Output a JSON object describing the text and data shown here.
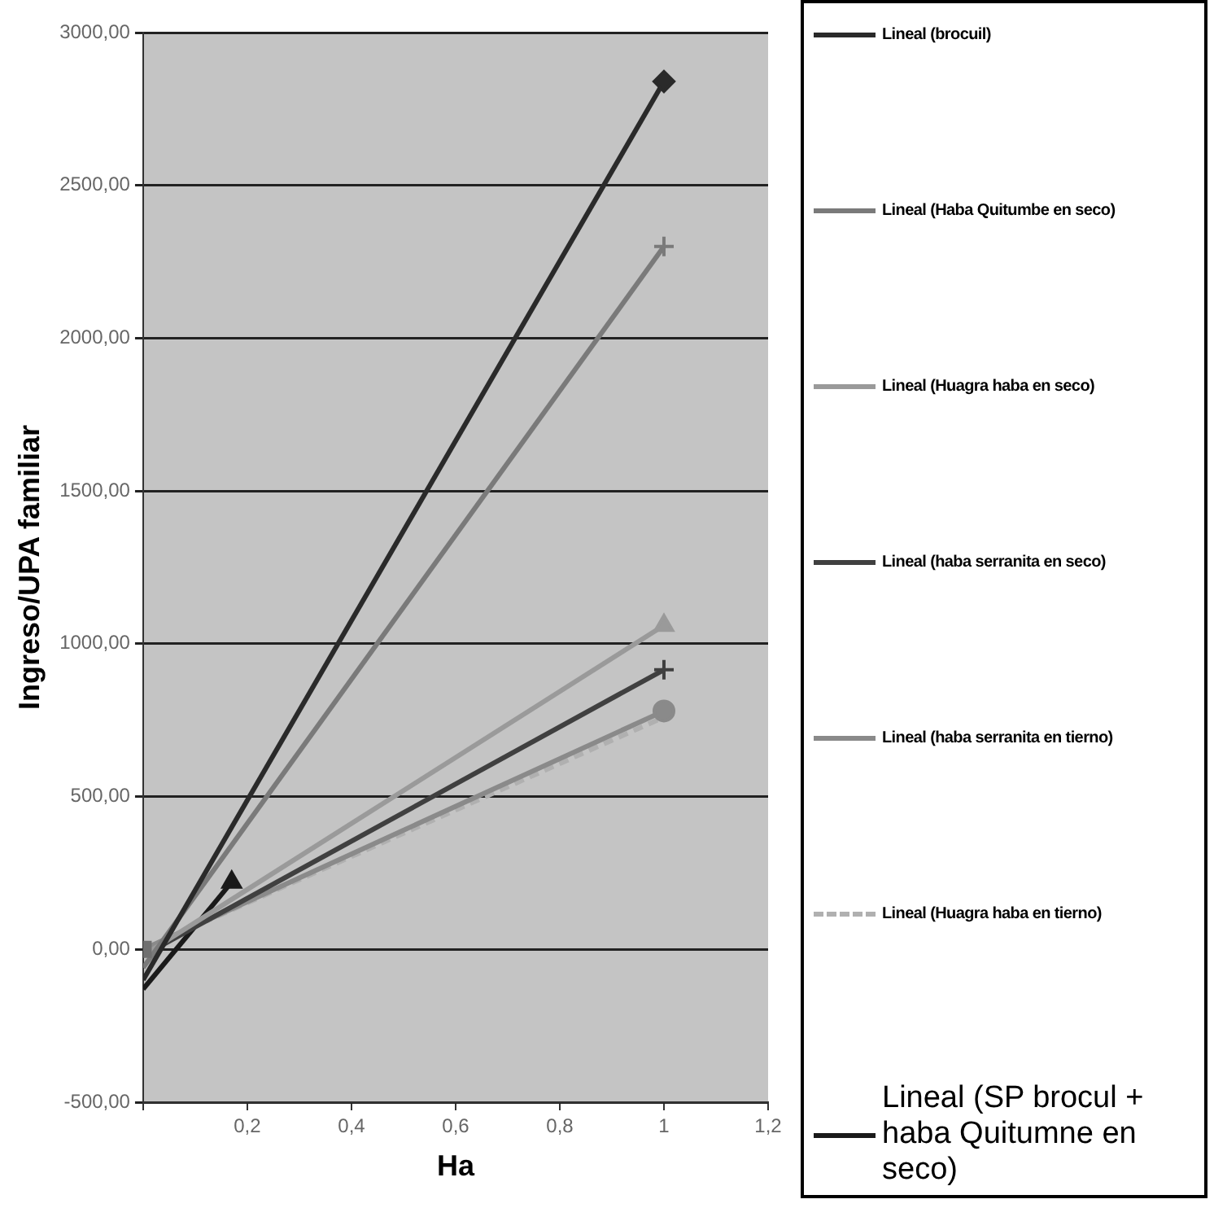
{
  "chart_data": {
    "type": "line",
    "xlabel": "Ha",
    "ylabel": "Ingreso/UPA familiar",
    "xlim": [
      0,
      1.2
    ],
    "xticks": [
      {
        "value": 0,
        "label": null
      },
      {
        "value": 0.2,
        "label": "0,2"
      },
      {
        "value": 0.4,
        "label": "0,4"
      },
      {
        "value": 0.6,
        "label": "0,6"
      },
      {
        "value": 0.8,
        "label": "0,8"
      },
      {
        "value": 1,
        "label": "1"
      },
      {
        "value": 1.2,
        "label": "1,2"
      }
    ],
    "ylim": [
      -500,
      3000
    ],
    "yticks": [
      {
        "value": -500,
        "label": "-500,00"
      },
      {
        "value": 0,
        "label": "0,00"
      },
      {
        "value": 500,
        "label": "500,00"
      },
      {
        "value": 1000,
        "label": "1000,00"
      },
      {
        "value": 1500,
        "label": "1500,00"
      },
      {
        "value": 2000,
        "label": "2000,00"
      },
      {
        "value": 2500,
        "label": "2500,00"
      },
      {
        "value": 3000,
        "label": "3000,00"
      }
    ],
    "grid": "y",
    "legend": "right",
    "line_style": "solid",
    "series": [
      {
        "type": "scatter",
        "color": "#2a2a2a",
        "x": [
          1
        ],
        "values": [
          2840
        ],
        "marker": "diamond"
      },
      {
        "type": "scatter",
        "color": "#7a7a7a",
        "x": [
          1
        ],
        "values": [
          2300
        ],
        "marker": "cross"
      },
      {
        "type": "scatter",
        "color": "#9a9a9a",
        "x": [
          1
        ],
        "values": [
          1060
        ],
        "marker": "triangle"
      },
      {
        "type": "scatter",
        "color": "#404040",
        "x": [
          1
        ],
        "values": [
          915
        ],
        "marker": "cross"
      },
      {
        "type": "scatter",
        "color": "#8a8a8a",
        "x": [
          1
        ],
        "values": [
          780
        ],
        "marker": "circle"
      },
      {
        "type": "scatter",
        "color": "#1a1a1a",
        "x": [
          0.17
        ],
        "values": [
          220
        ],
        "marker": "triangle"
      },
      {
        "type": "scatter",
        "color": "#707070",
        "x": [
          0
        ],
        "values": [
          0
        ],
        "marker": "square"
      },
      {
        "name": "Lineal (brocuil)",
        "color": "#2a2a2a",
        "x": [
          0,
          1
        ],
        "values": [
          -100,
          2840
        ],
        "marker": "none"
      },
      {
        "name": "Lineal (Haba Quitumbe en seco)",
        "color": "#7a7a7a",
        "x": [
          0,
          1
        ],
        "values": [
          -60,
          2300
        ],
        "marker": "none"
      },
      {
        "name": "Lineal (Huagra haba en seco)",
        "color": "#9a9a9a",
        "x": [
          0,
          1
        ],
        "values": [
          -20,
          1060
        ],
        "marker": "none"
      },
      {
        "name": "Lineal (haba serranita en seco)",
        "color": "#404040",
        "x": [
          0,
          1
        ],
        "values": [
          -20,
          915
        ],
        "marker": "none"
      },
      {
        "name": "Lineal (haba serranita en tierno)",
        "color": "#8a8a8a",
        "x": [
          0,
          1
        ],
        "values": [
          0,
          780
        ],
        "marker": "none"
      },
      {
        "name": "Lineal (Huagra haba en tierno)",
        "color": "#b0b0b0",
        "x": [
          0,
          1
        ],
        "values": [
          0,
          760
        ],
        "marker": "none",
        "line_style": "dashed"
      },
      {
        "name": "Lineal (SP brocul + haba Quitumne en seco)",
        "color": "#1a1a1a",
        "x": [
          0,
          0.17
        ],
        "values": [
          -130,
          220
        ],
        "marker": "none"
      }
    ]
  }
}
